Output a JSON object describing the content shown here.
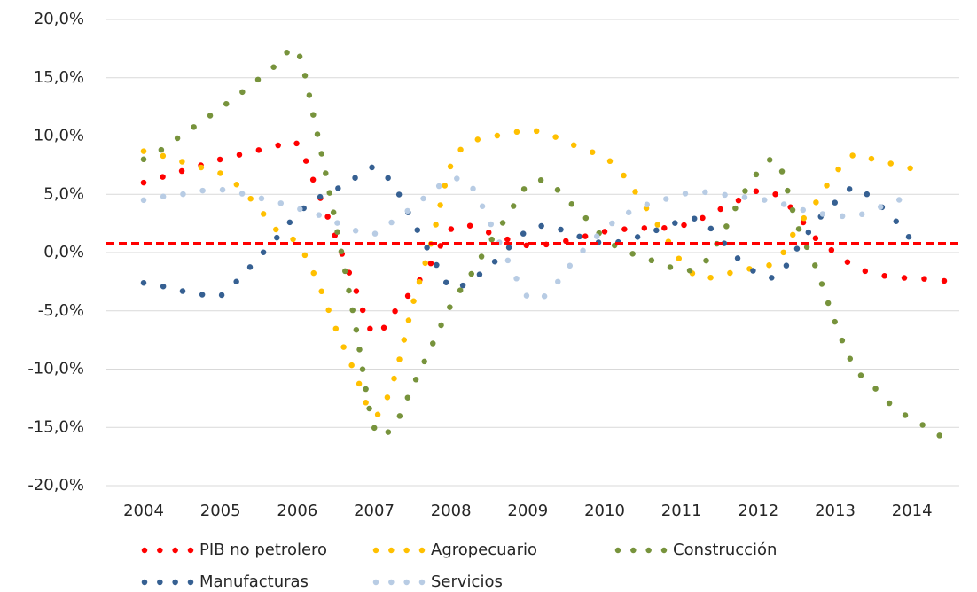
{
  "chart_data": {
    "type": "line",
    "categories": [
      "2004",
      null,
      null,
      null,
      "2005",
      null,
      null,
      null,
      "2006",
      null,
      null,
      null,
      "2007",
      null,
      null,
      null,
      "2008",
      null,
      null,
      null,
      "2009",
      null,
      null,
      null,
      "2010",
      null,
      null,
      null,
      "2011",
      null,
      null,
      null,
      "2012",
      null,
      null,
      null,
      "2013",
      null,
      null,
      null,
      "2014",
      null,
      null
    ],
    "ylim": [
      -20,
      20
    ],
    "yticks": [
      {
        "value": -20,
        "label": "-20,0%"
      },
      {
        "value": -15,
        "label": "-15,0%"
      },
      {
        "value": -10,
        "label": "-10,0%"
      },
      {
        "value": -5,
        "label": "-5,0%"
      },
      {
        "value": 0,
        "label": "0,0%"
      },
      {
        "value": 5,
        "label": "5,0%"
      },
      {
        "value": 10,
        "label": "10,0%"
      },
      {
        "value": 15,
        "label": "15,0%"
      },
      {
        "value": 20,
        "label": "20,0%"
      }
    ],
    "grid": true,
    "smooth": true,
    "line_style": "dotted",
    "legend": "bottom",
    "reference_line": {
      "value": 0.8,
      "color": "#ff0000"
    },
    "series": [
      {
        "name": "PIB no petrolero",
        "color": "#ff0000",
        "values": [
          6.0,
          6.5,
          7.0,
          7.5,
          8.0,
          8.4,
          8.8,
          9.2,
          9.3,
          5.5,
          1.3,
          -3.0,
          -7.0,
          -5.2,
          -3.2,
          -0.8,
          2.0,
          2.3,
          1.7,
          1.1,
          0.6,
          0.7,
          1.0,
          1.4,
          1.8,
          2.0,
          2.1,
          2.1,
          2.3,
          2.9,
          3.7,
          4.5,
          5.3,
          4.9,
          3.3,
          1.2,
          0.0,
          -1.2,
          -1.8,
          -2.1,
          -2.2,
          -2.3,
          -2.5
        ]
      },
      {
        "name": "Agropecuario",
        "color": "#ffc000",
        "values": [
          8.7,
          8.3,
          7.8,
          7.3,
          6.8,
          5.6,
          3.8,
          1.8,
          0.8,
          -2.3,
          -6.5,
          -10.3,
          -14.0,
          -11.0,
          -4.5,
          1.0,
          7.5,
          9.4,
          9.9,
          10.2,
          10.5,
          10.2,
          9.5,
          8.8,
          8.2,
          6.6,
          4.2,
          1.8,
          -0.8,
          -2.2,
          -1.9,
          -1.6,
          -1.2,
          -0.7,
          2.1,
          4.3,
          6.8,
          8.4,
          8.0,
          7.6,
          7.2,
          null,
          null
        ]
      },
      {
        "name": "Construcción",
        "color": "#77933c",
        "values": [
          8.0,
          8.9,
          10.1,
          11.2,
          12.4,
          13.6,
          14.9,
          16.2,
          17.3,
          10.5,
          2.5,
          -6.0,
          -15.0,
          -14.9,
          -11.5,
          -8.0,
          -4.5,
          -2.0,
          0.8,
          3.3,
          5.8,
          6.1,
          4.6,
          3.0,
          1.2,
          0.2,
          -0.4,
          -1.0,
          -1.5,
          -1.2,
          1.2,
          4.4,
          6.9,
          7.8,
          2.5,
          -1.3,
          -6.0,
          -9.8,
          -11.5,
          -13.2,
          -14.3,
          -15.2,
          -16.4
        ]
      },
      {
        "name": "Manufacturas",
        "color": "#366092",
        "values": [
          -2.6,
          -2.9,
          -3.3,
          -3.6,
          -3.7,
          -2.2,
          -0.4,
          1.4,
          3.3,
          4.6,
          5.4,
          6.4,
          7.3,
          5.8,
          2.7,
          -0.3,
          -3.0,
          -2.4,
          -1.2,
          0.4,
          1.9,
          2.3,
          1.8,
          1.2,
          0.8,
          1.0,
          1.5,
          2.1,
          2.7,
          2.8,
          1.2,
          -0.6,
          -1.8,
          -2.0,
          0.3,
          2.6,
          4.3,
          5.6,
          4.5,
          3.0,
          1.0,
          null,
          null
        ]
      },
      {
        "name": "Servicios",
        "color": "#b8cce4",
        "values": [
          4.5,
          4.8,
          5.0,
          5.3,
          5.4,
          5.1,
          4.7,
          4.3,
          3.8,
          3.3,
          2.6,
          1.9,
          1.6,
          2.7,
          3.9,
          5.2,
          6.3,
          5.8,
          2.7,
          -0.8,
          -3.8,
          -3.6,
          -1.5,
          0.4,
          2.0,
          3.2,
          4.0,
          4.5,
          5.0,
          5.2,
          5.0,
          4.8,
          4.6,
          4.3,
          3.8,
          3.4,
          3.2,
          3.1,
          3.7,
          4.3,
          5.0,
          null,
          null
        ]
      }
    ]
  }
}
